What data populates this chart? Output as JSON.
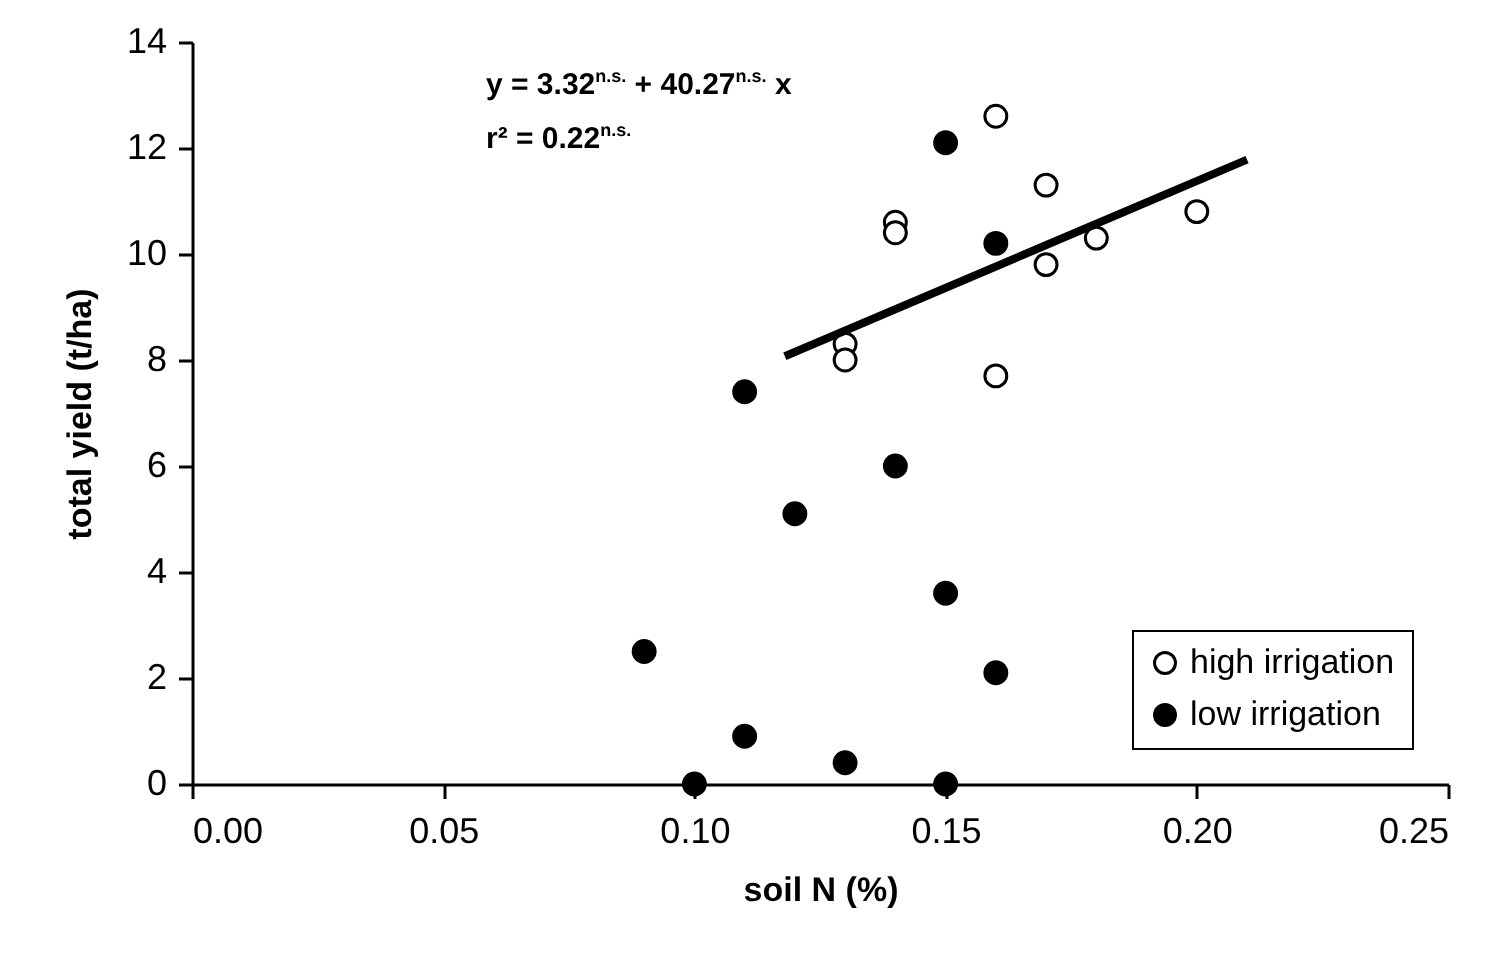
{
  "chart_data": {
    "type": "scatter",
    "xlabel": "soil N (%)",
    "ylabel": "total yield (t/ha)",
    "xlim": [
      0,
      0.25
    ],
    "ylim": [
      0,
      14
    ],
    "xticks": [
      {
        "value": 0,
        "label": "0.00"
      },
      {
        "value": 0.05,
        "label": "0.05"
      },
      {
        "value": 0.1,
        "label": "0.10"
      },
      {
        "value": 0.15,
        "label": "0.15"
      },
      {
        "value": 0.2,
        "label": "0.20"
      },
      {
        "value": 0.25,
        "label": "0.25"
      }
    ],
    "yticks": [
      0,
      2,
      4,
      6,
      8,
      10,
      12,
      14
    ],
    "grid": false,
    "legend": "bottom right",
    "marker": "circle",
    "annotations": [
      "y = 3.32$^{n.s.}$ + 40.27$^{n.s.}$ x",
      "r² = 0.22$^{n.s.}$"
    ],
    "series": [
      {
        "name": "high irrigation",
        "color": "#ffffff",
        "x": [
          0.16,
          0.14,
          0.14,
          0.17,
          0.2,
          0.18,
          0.17,
          0.13,
          0.13,
          0.16
        ],
        "values": [
          12.6,
          10.6,
          10.4,
          11.3,
          10.8,
          10.3,
          9.8,
          8.3,
          8.0,
          7.7
        ]
      },
      {
        "name": "low irrigation",
        "color": "#000000",
        "x": [
          0.15,
          0.16,
          0.11,
          0.14,
          0.12,
          0.15,
          0.09,
          0.16,
          0.11,
          0.13,
          0.1,
          0.15
        ],
        "values": [
          12.1,
          10.2,
          7.4,
          6.0,
          5.1,
          3.6,
          2.5,
          2.1,
          0.9,
          0.4,
          0,
          0
        ]
      },
      {
        "type": "line",
        "color": "#000000",
        "marker": "none",
        "line_style": "solid",
        "x": [
          0.118,
          0.21
        ],
        "values": [
          8.07,
          11.78
        ]
      }
    ]
  }
}
